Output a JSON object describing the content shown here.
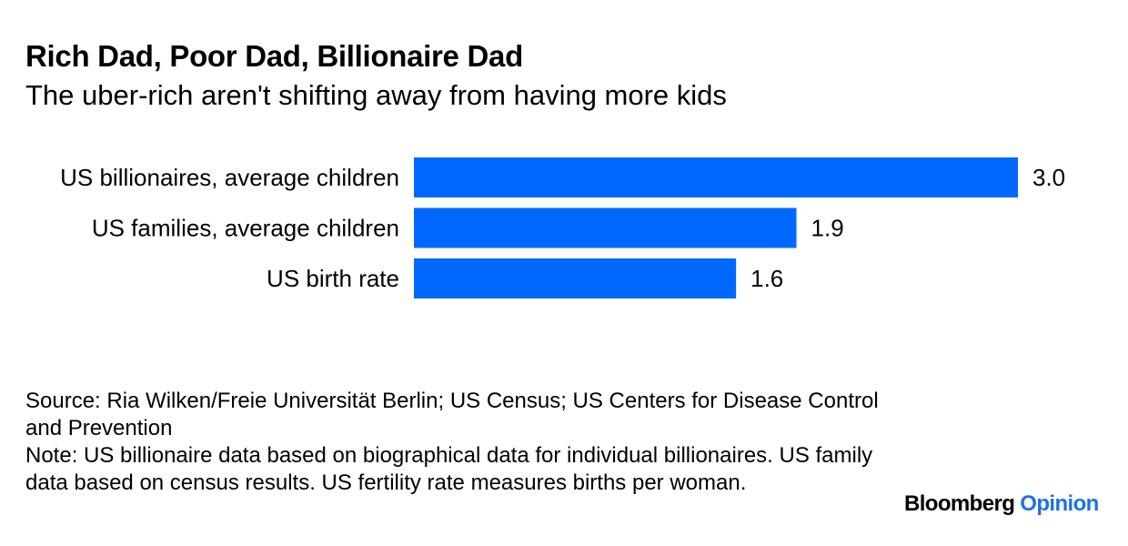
{
  "title": "Rich Dad, Poor Dad, Billionaire Dad",
  "subtitle": "The uber-rich aren't shifting away from having more kids",
  "source_text": "Source: Ria Wilken/Freie Universität Berlin; US Census; US Centers for Disease Control and Prevention",
  "note_text": "Note: US billionaire data based on biographical data for individual billionaires. US family data based on census results. US fertility rate measures births per woman.",
  "brand": {
    "name": "Bloomberg",
    "section": "Opinion",
    "name_color": "#000000",
    "section_color": "#1a72e8"
  },
  "chart_data": {
    "type": "bar",
    "orientation": "horizontal",
    "categories": [
      "US billionaires, average children",
      "US families, average children",
      "US birth rate"
    ],
    "values": [
      3.0,
      1.9,
      1.6
    ],
    "value_labels": [
      "3.0",
      "1.9",
      "1.6"
    ],
    "bar_color": "#0068ff",
    "xlim": [
      0,
      3.0
    ],
    "grid": false,
    "legend": "none"
  }
}
